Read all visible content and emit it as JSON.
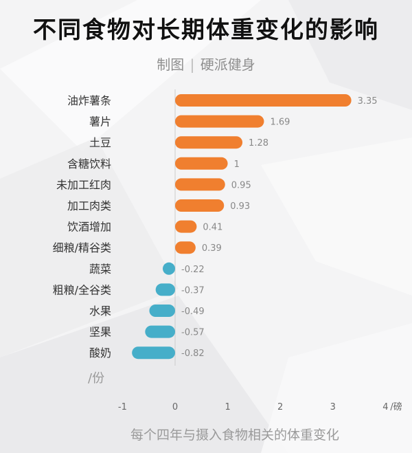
{
  "header": {
    "title": "不同食物对长期体重变化的影响",
    "credit_label": "制图",
    "separator": "|",
    "credit_author": "硬派健身"
  },
  "caption": "每个四年与摄入食物相关的体重变化",
  "colors": {
    "positive": "#f07f2f",
    "negative": "#46aec9",
    "label": "#333333",
    "value": "#888888",
    "axis": "#cccccc"
  },
  "chart_data": {
    "type": "bar",
    "orientation": "horizontal",
    "categories": [
      "油炸薯条",
      "薯片",
      "土豆",
      "含糖饮料",
      "未加工红肉",
      "加工肉类",
      "饮酒增加",
      "细粮/精谷类",
      "蔬菜",
      "粗粮/全谷类",
      "水果",
      "坚果",
      "酸奶"
    ],
    "values": [
      3.35,
      1.69,
      1.28,
      1,
      0.95,
      0.93,
      0.41,
      0.39,
      -0.22,
      -0.37,
      -0.49,
      -0.57,
      -0.82
    ],
    "value_labels": [
      "3.35",
      "1.69",
      "1.28",
      "1",
      "0.95",
      "0.93",
      "0.41",
      "0.39",
      "-0.22",
      "-0.37",
      "-0.49",
      "-0.57",
      "-0.82"
    ],
    "xlim": [
      -1,
      4
    ],
    "xticks": [
      "-1",
      "0",
      "1",
      "2",
      "3",
      "4"
    ],
    "unit_value_axis": "/磅",
    "unit_category_axis": "/份",
    "grid": false
  }
}
